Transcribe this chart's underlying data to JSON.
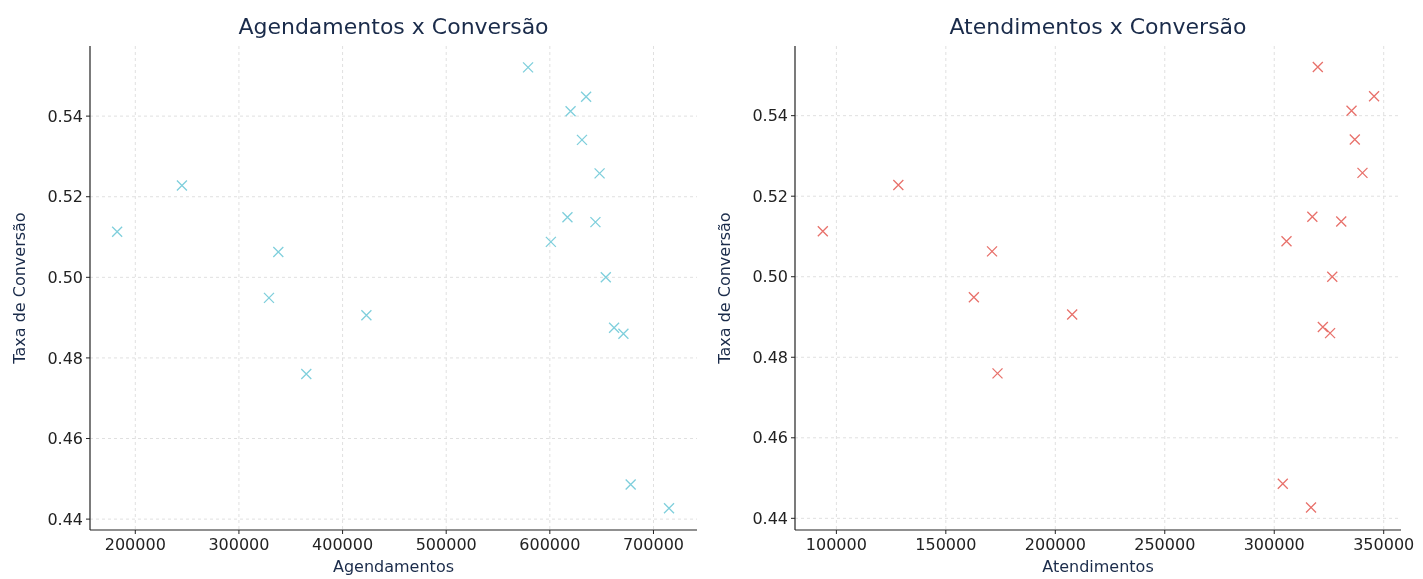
{
  "chart_data": [
    {
      "type": "scatter",
      "title": "Agendamentos x Conversão",
      "xlabel": "Agendamentos",
      "ylabel": "Taxa de Conversão",
      "marker": "cross",
      "grid": true,
      "xlim": [
        156300,
        742000
      ],
      "xticks": [
        200000,
        300000,
        400000,
        500000,
        600000,
        700000
      ],
      "ylim": [
        0.4373,
        0.5574
      ],
      "yticks": [
        0.44,
        0.46,
        0.48,
        {
          "value": 0.5,
          "label": "0.50"
        },
        0.52,
        0.54
      ],
      "series": [
        {
          "color": "#7fcfdc",
          "x": [
            182500,
            245000,
            329000,
            338000,
            365000,
            423000,
            579000,
            601000,
            617000,
            620000,
            631000,
            635000,
            644000,
            648000,
            654000,
            662000,
            671000,
            678000,
            715000
          ],
          "values": [
            0.5113,
            0.5228,
            0.4949,
            0.5063,
            0.476,
            0.4906,
            0.5521,
            0.5088,
            0.5149,
            0.5412,
            0.5341,
            0.5448,
            0.5137,
            0.5258,
            0.5,
            0.4875,
            0.486,
            0.4486,
            0.4427
          ]
        }
      ]
    },
    {
      "type": "scatter",
      "title": "Atendimentos x Conversão",
      "xlabel": "Atendimentos",
      "ylabel": "Taxa de Conversão",
      "marker": "cross",
      "grid": true,
      "xlim": [
        81100,
        357900
      ],
      "xticks": [
        100000,
        150000,
        200000,
        250000,
        300000,
        350000
      ],
      "ylim": [
        0.4371,
        0.5573
      ],
      "yticks": [
        0.44,
        0.46,
        0.48,
        {
          "value": 0.5,
          "label": "0.50"
        },
        0.52,
        0.54
      ],
      "series": [
        {
          "color": "#e8716b",
          "x": [
            93800,
            128300,
            162800,
            171100,
            173600,
            207700,
            319900,
            305600,
            317400,
            335300,
            336800,
            345600,
            330600,
            340300,
            326500,
            322200,
            325500,
            303900,
            316800
          ],
          "values": [
            0.5113,
            0.5228,
            0.4949,
            0.5063,
            0.476,
            0.4906,
            0.5521,
            0.5088,
            0.5149,
            0.5412,
            0.5341,
            0.5448,
            0.5137,
            0.5258,
            0.5,
            0.4875,
            0.486,
            0.4486,
            0.4427
          ]
        }
      ]
    }
  ]
}
